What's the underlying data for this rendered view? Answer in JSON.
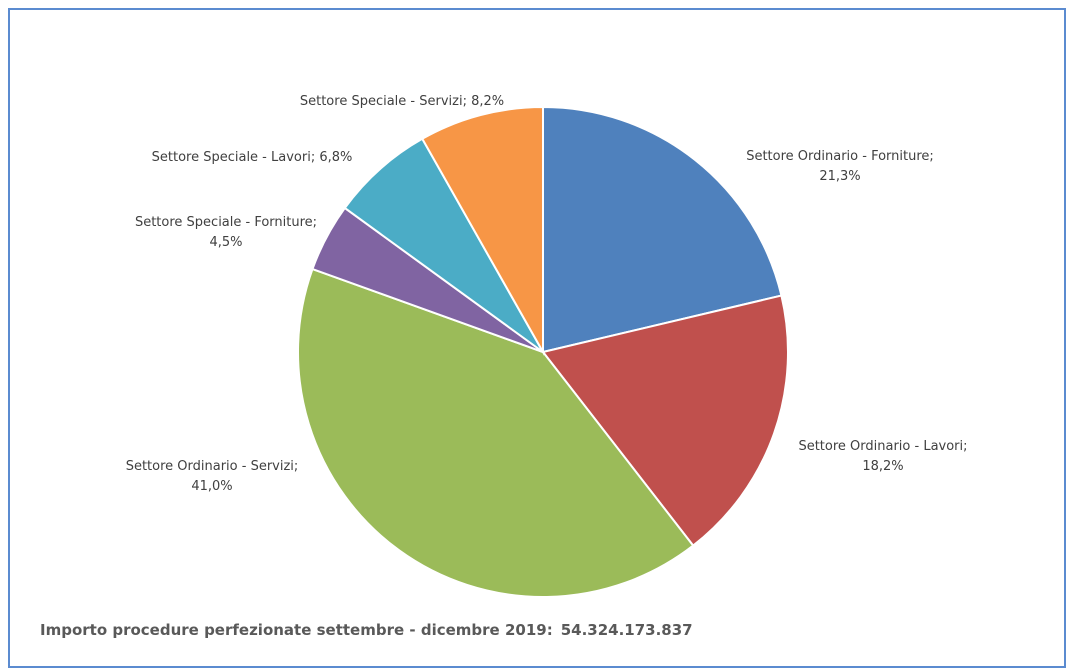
{
  "chart_data": {
    "type": "pie",
    "title": "",
    "slices": [
      {
        "label": "Settore Ordinario - Forniture",
        "value": 21.3,
        "text": "21,3%",
        "color": "#4f81bd"
      },
      {
        "label": "Settore Ordinario - Lavori",
        "value": 18.2,
        "text": "18,2%",
        "color": "#c0504d"
      },
      {
        "label": "Settore Ordinario - Servizi",
        "value": 41.0,
        "text": "41,0%",
        "color": "#9bbb59"
      },
      {
        "label": "Settore Speciale - Forniture",
        "value": 4.5,
        "text": "4,5%",
        "color": "#8064a2"
      },
      {
        "label": "Settore Speciale - Lavori",
        "value": 6.8,
        "text": "6,8%",
        "color": "#4bacc6"
      },
      {
        "label": "Settore Speciale - Servizi",
        "value": 8.2,
        "text": "8,2%",
        "color": "#f79646"
      }
    ]
  },
  "footer": {
    "caption": "Importo procedure perfezionate settembre - dicembre 2019:",
    "total": "54.324.173.837"
  }
}
